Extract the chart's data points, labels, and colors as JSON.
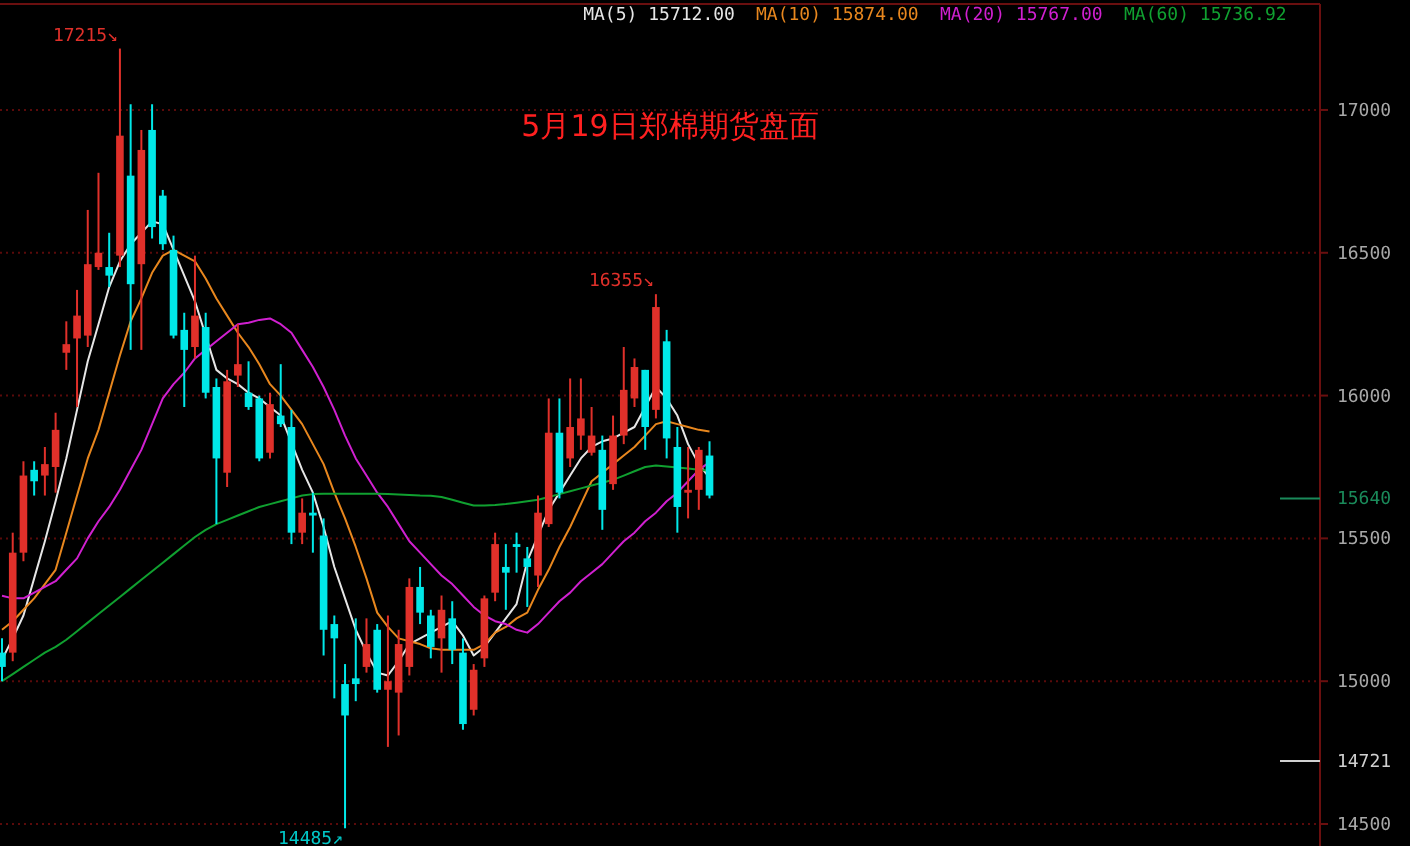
{
  "chart_data": {
    "type": "candlestick",
    "title": "5月19日郑棉期货盘面",
    "categories": [
      null,
      null,
      null,
      null,
      null,
      null,
      null,
      null,
      null,
      null,
      null,
      null,
      null,
      null,
      null,
      null,
      null,
      null,
      null,
      null,
      null,
      null,
      null,
      null,
      null,
      null,
      null,
      null,
      null,
      null,
      null,
      null,
      null,
      null,
      null,
      null,
      null,
      null,
      null,
      null,
      null,
      null,
      null,
      null,
      null,
      null,
      null,
      null,
      null,
      null,
      null,
      null,
      null,
      null,
      null,
      null,
      null,
      null,
      null,
      null,
      null,
      null,
      null,
      null,
      null,
      null,
      null
    ],
    "ohlc": [
      [
        15100,
        15150,
        15000,
        15050
      ],
      [
        15100,
        15520,
        15070,
        15450
      ],
      [
        15450,
        15770,
        15420,
        15720
      ],
      [
        15740,
        15770,
        15650,
        15700
      ],
      [
        15720,
        15820,
        15650,
        15760
      ],
      [
        15750,
        15940,
        15660,
        15880
      ],
      [
        16150,
        16260,
        16090,
        16180
      ],
      [
        16200,
        16370,
        15960,
        16280
      ],
      [
        16210,
        16650,
        16170,
        16460
      ],
      [
        16450,
        16780,
        16440,
        16500
      ],
      [
        16450,
        16570,
        16380,
        16420
      ],
      [
        16490,
        17215,
        16450,
        16910
      ],
      [
        16770,
        17020,
        16160,
        16390
      ],
      [
        16460,
        16930,
        16160,
        16860
      ],
      [
        16930,
        17020,
        16550,
        16590
      ],
      [
        16700,
        16720,
        16510,
        16530
      ],
      [
        16510,
        16560,
        16200,
        16210
      ],
      [
        16230,
        16290,
        15960,
        16160
      ],
      [
        16170,
        16490,
        16130,
        16280
      ],
      [
        16240,
        16290,
        15990,
        16010
      ],
      [
        16030,
        16060,
        15550,
        15780
      ],
      [
        15730,
        16090,
        15680,
        16050
      ],
      [
        16070,
        16250,
        16030,
        16110
      ],
      [
        16010,
        16120,
        15950,
        15960
      ],
      [
        15990,
        16000,
        15770,
        15780
      ],
      [
        15800,
        16010,
        15780,
        15970
      ],
      [
        15930,
        16110,
        15890,
        15900
      ],
      [
        15890,
        15950,
        15480,
        15520
      ],
      [
        15520,
        15640,
        15480,
        15590
      ],
      [
        15590,
        15660,
        15450,
        15580
      ],
      [
        15510,
        15570,
        15090,
        15180
      ],
      [
        15200,
        15230,
        14940,
        15150
      ],
      [
        14990,
        15060,
        14485,
        14880
      ],
      [
        15010,
        15220,
        14930,
        14990
      ],
      [
        15050,
        15220,
        15030,
        15130
      ],
      [
        15180,
        15200,
        14960,
        14970
      ],
      [
        14970,
        15230,
        14770,
        15000
      ],
      [
        14960,
        15180,
        14810,
        15130
      ],
      [
        15050,
        15360,
        15020,
        15330
      ],
      [
        15330,
        15400,
        15200,
        15240
      ],
      [
        15230,
        15250,
        15080,
        15120
      ],
      [
        15150,
        15300,
        15030,
        15250
      ],
      [
        15220,
        15280,
        15060,
        15110
      ],
      [
        15100,
        15150,
        14830,
        14850
      ],
      [
        14900,
        15060,
        14880,
        15040
      ],
      [
        15080,
        15300,
        15050,
        15290
      ],
      [
        15310,
        15520,
        15280,
        15480
      ],
      [
        15400,
        15480,
        15250,
        15380
      ],
      [
        15480,
        15520,
        15380,
        15470
      ],
      [
        15430,
        15470,
        15260,
        15400
      ],
      [
        15370,
        15650,
        15330,
        15590
      ],
      [
        15550,
        15990,
        15540,
        15870
      ],
      [
        15870,
        15990,
        15640,
        15660
      ],
      [
        15780,
        16060,
        15750,
        15890
      ],
      [
        15860,
        16060,
        15810,
        15920
      ],
      [
        15800,
        15960,
        15790,
        15860
      ],
      [
        15810,
        15860,
        15530,
        15600
      ],
      [
        15690,
        15930,
        15670,
        15860
      ],
      [
        15860,
        16170,
        15830,
        16020
      ],
      [
        15990,
        16130,
        15960,
        16100
      ],
      [
        16090,
        16090,
        15810,
        15890
      ],
      [
        15950,
        16355,
        15920,
        16310
      ],
      [
        16190,
        16230,
        15780,
        15850
      ],
      [
        15820,
        15890,
        15520,
        15610
      ],
      [
        15660,
        15820,
        15570,
        15670
      ],
      [
        15670,
        15820,
        15600,
        15810
      ],
      [
        15790,
        15840,
        15640,
        15650
      ]
    ],
    "series": [
      {
        "type": "line",
        "name": "MA(5) 15712.00",
        "color": "#e6e6e6",
        "values": [
          15075,
          15150,
          15230,
          15360,
          15490,
          15630,
          15780,
          15950,
          16120,
          16250,
          16380,
          16470,
          16530,
          16570,
          16610,
          16600,
          16510,
          16420,
          16330,
          null,
          16090,
          16060,
          16040,
          16010,
          15990,
          15960,
          15930,
          null,
          15740,
          15660,
          15540,
          15400,
          15290,
          15180,
          15100,
          15030,
          15020,
          15070,
          15130,
          15150,
          15170,
          15190,
          15210,
          15160,
          15090,
          15120,
          15170,
          15220,
          15270,
          15420,
          null,
          15600,
          15660,
          15720,
          15780,
          15820,
          15840,
          15850,
          15870,
          15890,
          15960,
          16030,
          15990,
          15930,
          15830,
          15760,
          15712
        ]
      },
      {
        "type": "line",
        "name": "MA(10) 15874.00",
        "color": "#e8871e",
        "values": [
          15180,
          15210,
          15250,
          15290,
          15340,
          15390,
          15520,
          15650,
          15780,
          15880,
          16010,
          16140,
          16260,
          16340,
          16430,
          16490,
          16510,
          16490,
          16470,
          16410,
          16340,
          16280,
          16220,
          16170,
          16110,
          16040,
          16000,
          15950,
          15900,
          15830,
          15760,
          15660,
          15570,
          15470,
          15360,
          15240,
          15190,
          15150,
          15140,
          15130,
          15115,
          15110,
          15110,
          15110,
          15110,
          15130,
          15170,
          15190,
          15220,
          15240,
          15320,
          15390,
          15470,
          15540,
          15620,
          15700,
          15730,
          15760,
          15790,
          15820,
          15860,
          15900,
          15910,
          15900,
          15890,
          15880,
          15874
        ]
      },
      {
        "type": "line",
        "name": "MA(20) 15767.00",
        "color": "#d020d0",
        "values": [
          15299,
          15290,
          15290,
          15310,
          15330,
          15350,
          15390,
          15430,
          15500,
          15560,
          15610,
          15670,
          15740,
          15810,
          15900,
          15990,
          16040,
          16080,
          16130,
          16160,
          16190,
          16220,
          16250,
          16255,
          16265,
          16270,
          16250,
          16220,
          16160,
          16100,
          16030,
          15950,
          15860,
          15780,
          15720,
          15660,
          15610,
          15550,
          15490,
          15450,
          15410,
          15370,
          15340,
          15300,
          15260,
          15230,
          15210,
          15200,
          15180,
          15170,
          15200,
          15240,
          15280,
          15310,
          15350,
          15380,
          15410,
          15450,
          15490,
          15520,
          15560,
          15590,
          15630,
          15660,
          15700,
          15740,
          15767
        ]
      },
      {
        "type": "line",
        "name": "MA(60) 15736.92",
        "color": "#10a030",
        "values": [
          15000,
          15025,
          15050,
          15075,
          15100,
          15120,
          15145,
          15175,
          15205,
          15235,
          15265,
          15295,
          15325,
          15355,
          15385,
          15415,
          15445,
          15475,
          15505,
          15530,
          15550,
          15565,
          15580,
          15595,
          15610,
          15620,
          15630,
          15640,
          15650,
          15655,
          15656,
          15656,
          15656,
          15656,
          15656,
          15656,
          15655,
          15654,
          15652,
          15650,
          15649,
          15645,
          15635,
          15625,
          15615,
          15615,
          15617,
          15620,
          15625,
          15630,
          15635,
          15645,
          15655,
          15665,
          15675,
          15685,
          15695,
          15705,
          15720,
          15735,
          15750,
          15755,
          15752,
          15748,
          15745,
          15740,
          15737
        ]
      }
    ],
    "ylim": [
      14423,
      17385
    ],
    "yticks": [
      14500,
      15000,
      15500,
      16000,
      16500,
      17000
    ],
    "tick_labels": "y",
    "grid": "y",
    "ref_lines": [
      {
        "axis": "y",
        "value": 15640,
        "label": "15640",
        "color": "#1a8a5a"
      },
      {
        "axis": "y",
        "value": 14721,
        "label": "14721",
        "color": "#d0d0d0"
      }
    ],
    "annotations": [
      "17215↘",
      "14485↗",
      "16355↘"
    ]
  }
}
